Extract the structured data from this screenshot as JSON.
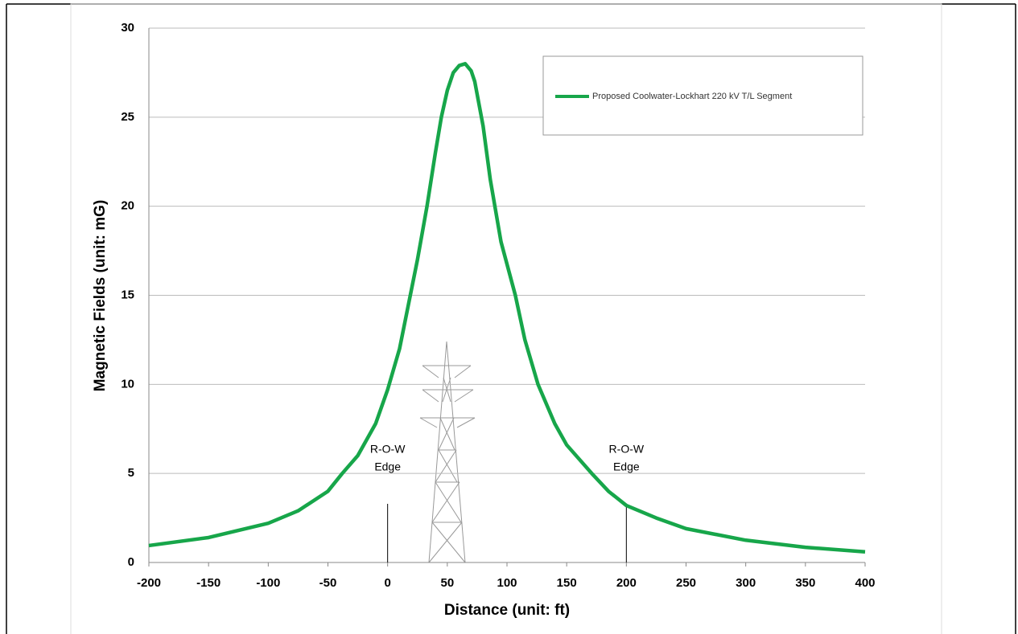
{
  "chart_data": {
    "type": "line",
    "x_label": "Distance (unit: ft)",
    "y_label": "Magnetic Fields (unit: mG)",
    "x": [
      -200,
      -150,
      -100,
      -75,
      -50,
      -38,
      -25,
      -10,
      0,
      10,
      19,
      25,
      33,
      40,
      45,
      50,
      55,
      60,
      65,
      70,
      73,
      80,
      86,
      95,
      107,
      115,
      126,
      140,
      150,
      171,
      185,
      200,
      225,
      250,
      300,
      350,
      400
    ],
    "series": [
      {
        "name": "Proposed Coolwater-Lockhart 220 kV T/L Segment",
        "color": "#17a64a",
        "values": [
          0.95,
          1.4,
          2.2,
          2.9,
          4.0,
          5,
          6,
          7.8,
          9.7,
          12,
          15,
          17,
          20,
          23,
          25,
          26.5,
          27.5,
          27.9,
          28,
          27.6,
          27,
          24.5,
          21.5,
          18,
          15,
          12.5,
          10,
          7.8,
          6.6,
          5,
          4,
          3.2,
          2.5,
          1.9,
          1.25,
          0.85,
          0.6
        ]
      }
    ],
    "xlim": [
      -200,
      400
    ],
    "xticks": [
      -200,
      -150,
      -100,
      -50,
      0,
      50,
      100,
      150,
      200,
      250,
      300,
      350,
      400
    ],
    "ylim": [
      0,
      30
    ],
    "yticks": [
      0,
      5,
      10,
      15,
      20,
      25,
      30
    ],
    "grid": true,
    "legend": "upper right",
    "annotations": [
      {
        "x": 0,
        "lines": [
          "R-O-W",
          "Edge"
        ]
      },
      {
        "x": 200,
        "lines": [
          "R-O-W",
          "Edge"
        ]
      }
    ]
  }
}
